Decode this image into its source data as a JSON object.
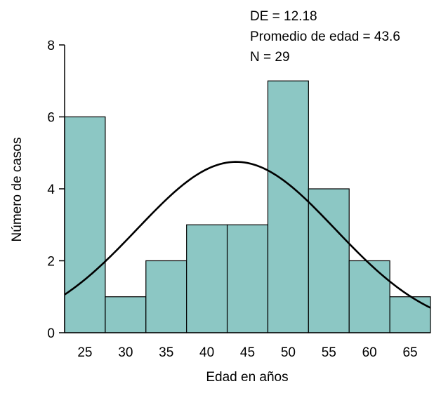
{
  "chart_data": {
    "type": "bar",
    "subtype": "histogram",
    "xlabel": "Edad en años",
    "ylabel": "Número de casos",
    "categories": [
      "25",
      "30",
      "35",
      "40",
      "45",
      "50",
      "55",
      "60",
      "65"
    ],
    "values": [
      6,
      1,
      2,
      3,
      3,
      7,
      4,
      2,
      1
    ],
    "ylim": [
      0,
      8
    ],
    "yticks": [
      "0",
      "2",
      "4",
      "6",
      "8"
    ],
    "bar_color": "#8cc7c4",
    "grid": false,
    "stats": [
      {
        "label": "DE = 12.18"
      },
      {
        "label": "Promedio de edad = 43.6"
      },
      {
        "label": "N = 29"
      }
    ],
    "normal_curve": {
      "mean": 43.6,
      "sd": 12.18,
      "n": 29,
      "bin_width": 5
    }
  }
}
